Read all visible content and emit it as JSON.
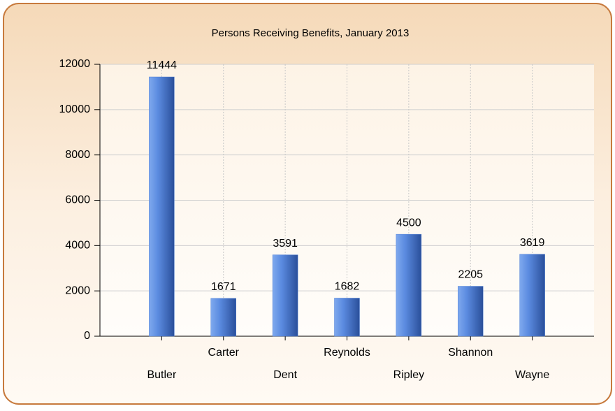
{
  "chart_data": {
    "type": "bar",
    "title": "Persons Receiving Benefits, January 2013",
    "categories": [
      "Butler",
      "Carter",
      "Dent",
      "Reynolds",
      "Ripley",
      "Shannon",
      "Wayne"
    ],
    "values": [
      11444,
      1671,
      3591,
      1682,
      4500,
      2205,
      3619
    ],
    "color": "#4f7fd6",
    "ylim": [
      0,
      12000
    ],
    "yticks": [
      0,
      2000,
      4000,
      6000,
      8000,
      10000,
      12000
    ],
    "grid": true,
    "data_labels": true
  }
}
